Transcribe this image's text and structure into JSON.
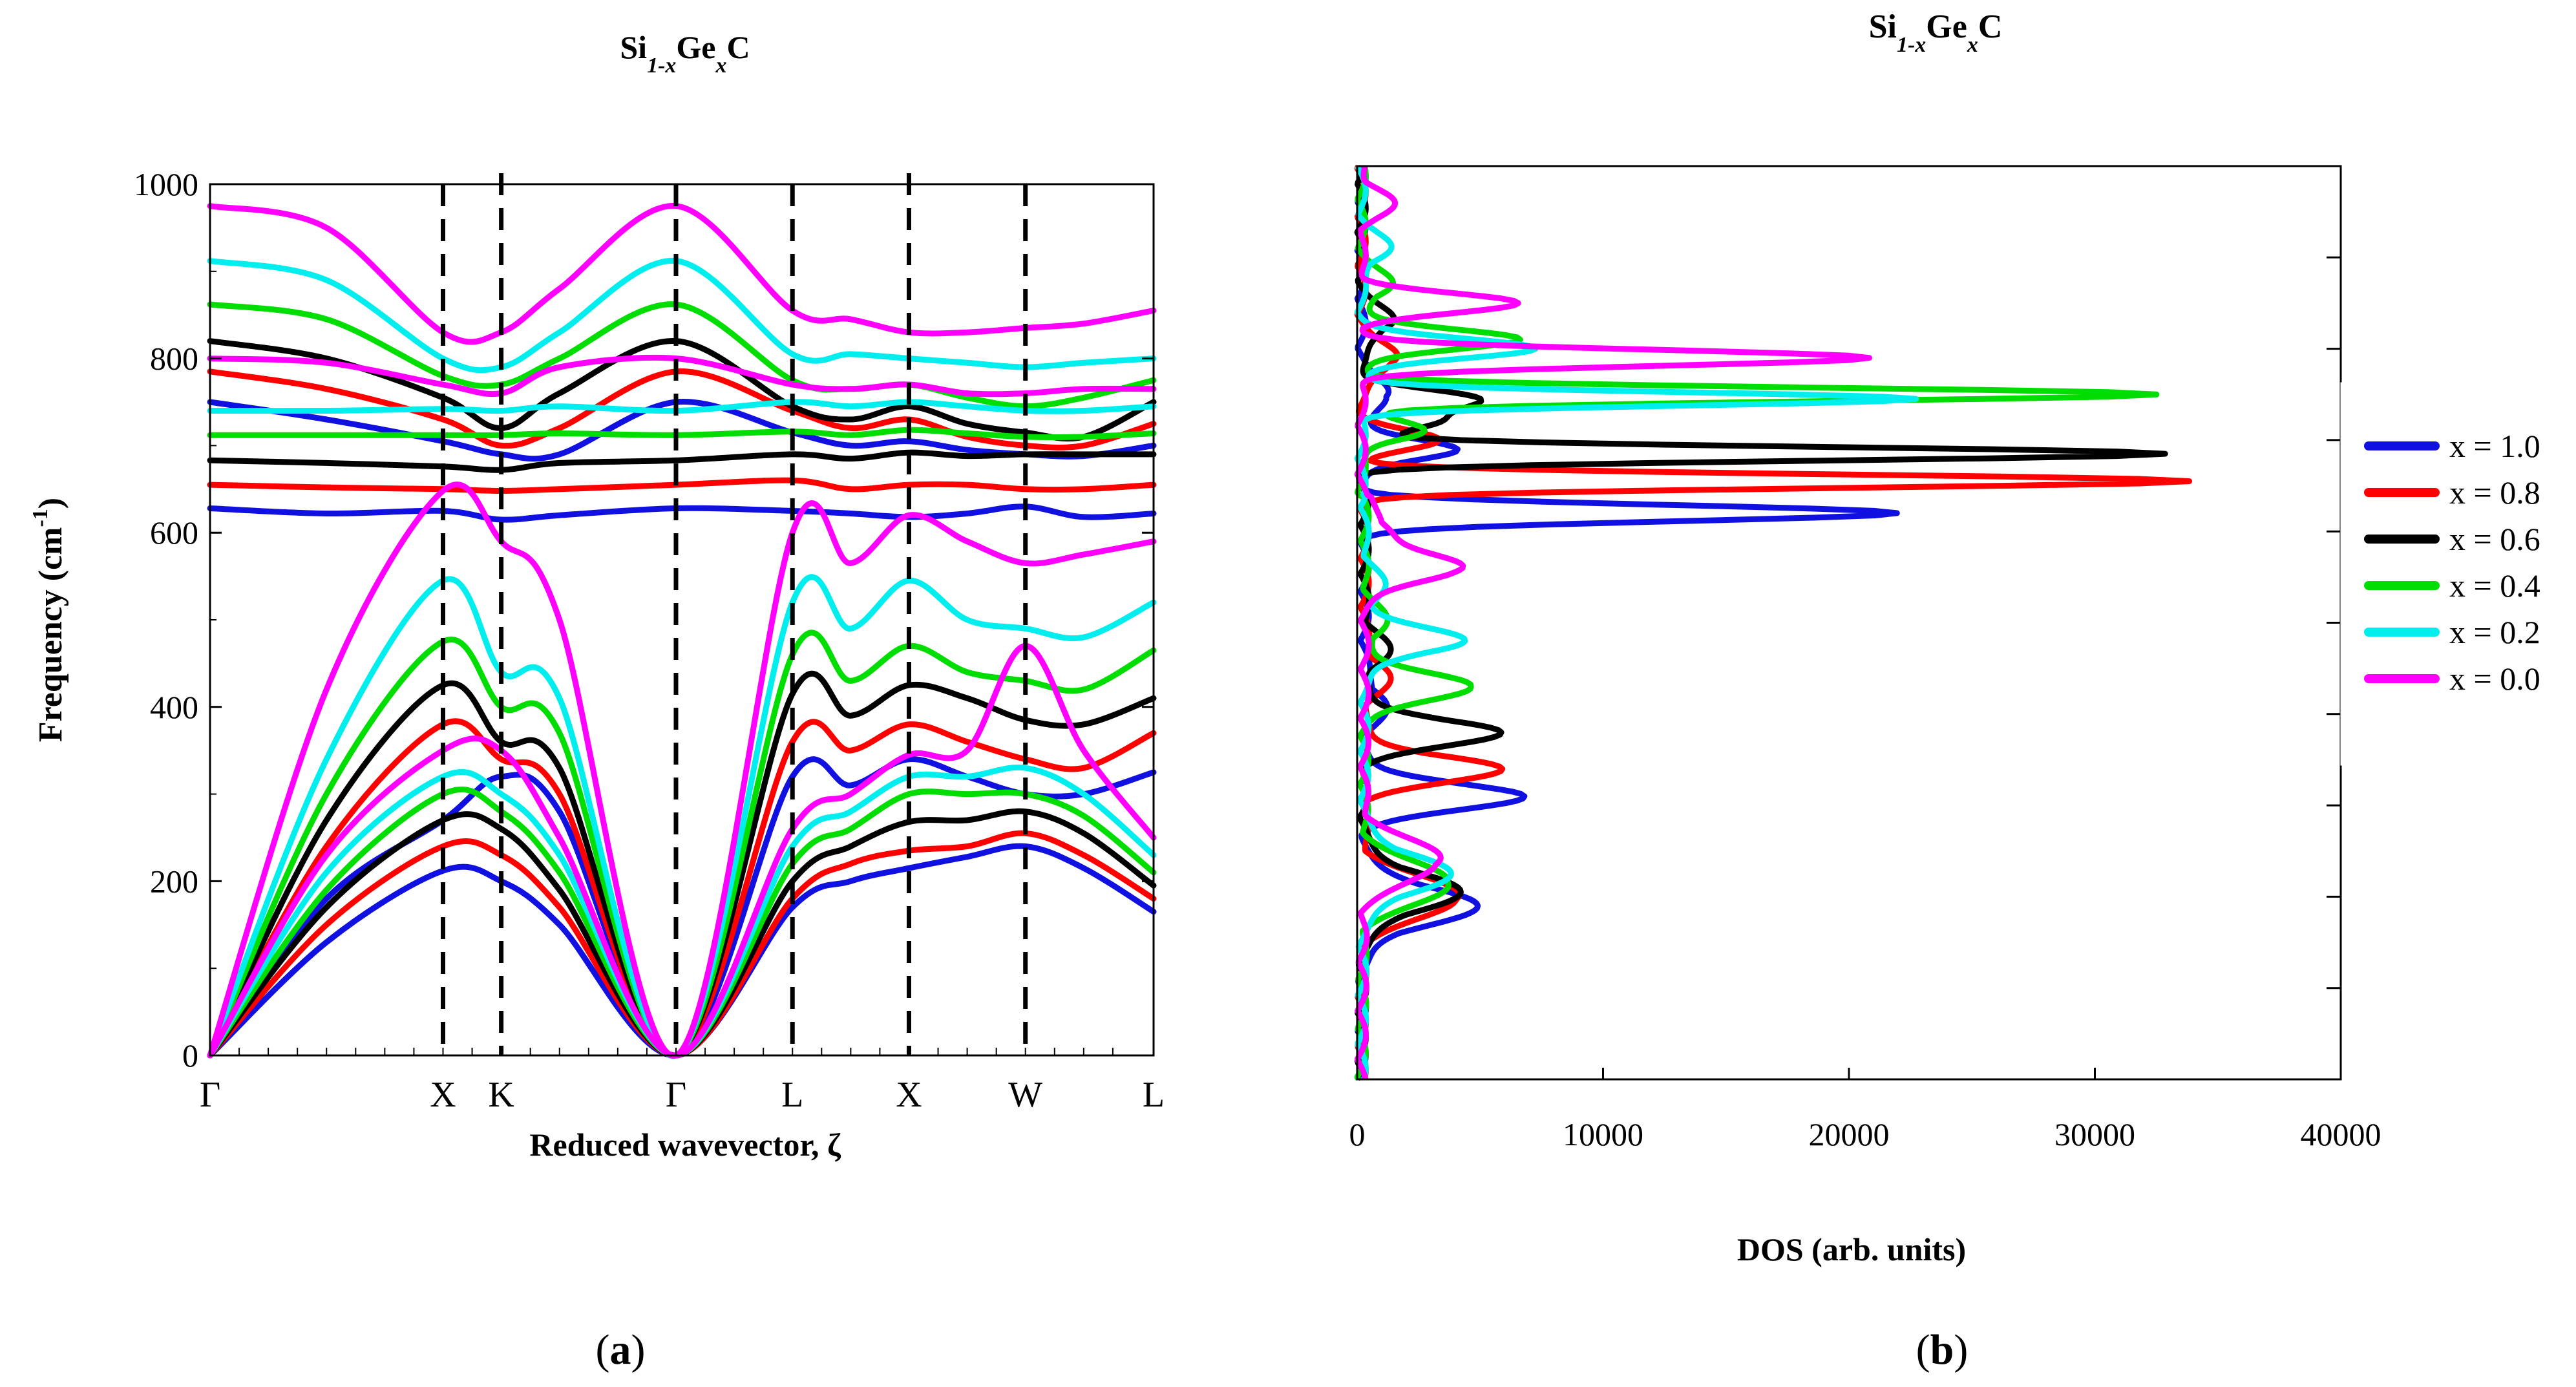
{
  "chart_data": [
    {
      "panel": "a",
      "panel_label": "(a)",
      "type": "line",
      "title": "Si1-xGexC",
      "title_parts": {
        "base1": "Si",
        "sub1": "1-x",
        "base2": "Ge",
        "sub2": "x",
        "base3": "C"
      },
      "xlabel": "Reduced wavevector, ζ",
      "ylabel": "Frequency (cm⁻¹)",
      "ylabel_parts": {
        "main": "Frequency (cm",
        "sup": "-1",
        "tail": ")"
      },
      "xlim": [
        0,
        4.05
      ],
      "ylim": [
        0,
        1000
      ],
      "yticks": [
        0,
        200,
        400,
        600,
        800,
        1000
      ],
      "kpoints": [
        {
          "label": "Γ",
          "x": 0.0
        },
        {
          "label": "X",
          "x": 1.0
        },
        {
          "label": "K",
          "x": 1.25
        },
        {
          "label": "Γ",
          "x": 2.0
        },
        {
          "label": "L",
          "x": 2.5
        },
        {
          "label": "X",
          "x": 3.0
        },
        {
          "label": "W",
          "x": 3.5
        },
        {
          "label": "L",
          "x": 4.05
        }
      ],
      "vertical_dashed_at": [
        1.0,
        1.25,
        2.0,
        2.5,
        3.0,
        3.5
      ],
      "x_nodes": [
        0,
        0.5,
        1.0,
        1.25,
        1.5,
        2.0,
        2.5,
        2.75,
        3.0,
        3.25,
        3.5,
        3.75,
        4.05
      ],
      "series": [
        {
          "name": "x = 1.0",
          "color": "#1010e0",
          "optical": [
            [
              628,
              622,
              625,
              615,
              620,
              628,
              625,
              622,
              618,
              622,
              630,
              618,
              622
            ],
            [
              750,
              730,
              705,
              690,
              690,
              750,
              715,
              700,
              705,
              695,
              690,
              688,
              700
            ]
          ],
          "acoustic": [
            [
              0,
              130,
              212,
              200,
              150,
              0,
              170,
              200,
              215,
              228,
              240,
              215,
              165
            ],
            [
              0,
              180,
              270,
              320,
              280,
              0,
              320,
              310,
              340,
              320,
              300,
              300,
              325
            ]
          ]
        },
        {
          "name": "x = 0.8",
          "color": "#ff0000",
          "optical": [
            [
              655,
              652,
              650,
              648,
              650,
              655,
              660,
              650,
              655,
              655,
              650,
              650,
              655
            ],
            [
              785,
              765,
              730,
              700,
              720,
              785,
              740,
              720,
              730,
              710,
              700,
              700,
              725
            ]
          ],
          "acoustic": [
            [
              0,
              150,
              240,
              230,
              170,
              0,
              180,
              220,
              235,
              240,
              255,
              230,
              180
            ],
            [
              0,
              240,
              380,
              340,
              300,
              0,
              360,
              350,
              380,
              360,
              340,
              330,
              370
            ]
          ]
        },
        {
          "name": "x = 0.6",
          "color": "#000000",
          "optical": [
            [
              683,
              680,
              676,
              672,
              680,
              683,
              690,
              685,
              692,
              688,
              690,
              690,
              690
            ],
            [
              820,
              800,
              755,
              720,
              760,
              820,
              745,
              730,
              745,
              725,
              715,
              710,
              750
            ]
          ],
          "acoustic": [
            [
              0,
              170,
              270,
              260,
              190,
              0,
              200,
              240,
              268,
              270,
              280,
              255,
              195
            ],
            [
              0,
              270,
              425,
              360,
              330,
              0,
              415,
              390,
              425,
              410,
              385,
              380,
              410
            ]
          ]
        },
        {
          "name": "x = 0.4",
          "color": "#00dd00",
          "optical": [
            [
              712,
              712,
              712,
              712,
              714,
              712,
              716,
              712,
              718,
              714,
              710,
              710,
              714
            ],
            [
              862,
              845,
              780,
              770,
              800,
              862,
              775,
              765,
              770,
              755,
              745,
              755,
              775
            ]
          ],
          "acoustic": [
            [
              0,
              190,
              300,
              280,
              210,
              0,
              220,
              260,
              300,
              300,
              300,
              275,
              210
            ],
            [
              0,
              300,
              475,
              400,
              370,
              0,
              460,
              430,
              470,
              440,
              430,
              420,
              465
            ]
          ]
        },
        {
          "name": "x = 0.2",
          "color": "#00eeee",
          "optical": [
            [
              740,
              740,
              742,
              740,
              745,
              740,
              750,
              745,
              750,
              745,
              740,
              740,
              745
            ],
            [
              912,
              890,
              800,
              790,
              830,
              912,
              805,
              805,
              800,
              795,
              790,
              795,
              800
            ]
          ],
          "acoustic": [
            [
              0,
              210,
              320,
              300,
              230,
              0,
              240,
              280,
              320,
              320,
              330,
              300,
              230
            ],
            [
              0,
              340,
              545,
              440,
              410,
              0,
              520,
              490,
              545,
              500,
              490,
              480,
              520
            ]
          ]
        },
        {
          "name": "x = 0.0",
          "color": "#ff00ff",
          "optical": [
            [
              800,
              795,
              770,
              760,
              790,
              800,
              770,
              765,
              770,
              760,
              760,
              765,
              765
            ],
            [
              975,
              950,
              830,
              830,
              880,
              975,
              855,
              845,
              830,
              830,
              835,
              840,
              855
            ]
          ],
          "acoustic": [
            [
              0,
              230,
              350,
              350,
              250,
              0,
              260,
              300,
              345,
              350,
              470,
              350,
              250
            ],
            [
              0,
              420,
              648,
              590,
              500,
              0,
              600,
              565,
              620,
              590,
              565,
              575,
              590
            ]
          ]
        }
      ]
    },
    {
      "panel": "b",
      "panel_label": "(b)",
      "type": "line",
      "title": "Si1-xGexC",
      "title_parts": {
        "base1": "Si",
        "sub1": "1-x",
        "base2": "Ge",
        "sub2": "x",
        "base3": "C"
      },
      "xlabel": "DOS (arb. units)",
      "xlim": [
        0,
        40000
      ],
      "ylim": [
        0,
        1000
      ],
      "xticks": [
        0,
        10000,
        20000,
        30000,
        40000
      ],
      "xtick_labels": [
        "0",
        "10000",
        "20000",
        "30000",
        "40000"
      ],
      "ytick_marks": [
        0,
        100,
        200,
        300,
        400,
        500,
        600,
        700,
        800,
        900,
        1000
      ],
      "legend_position": "right",
      "series": [
        {
          "name": "x = 1.0",
          "color": "#1010e0",
          "peaks": [
            [
              190,
              4500,
              30
            ],
            [
              310,
              6500,
              20
            ],
            [
              410,
              800,
              25
            ],
            [
              620,
              21500,
              12
            ],
            [
              690,
              4000,
              15
            ],
            [
              750,
              1200,
              20
            ]
          ]
        },
        {
          "name": "x = 0.8",
          "color": "#ff0000",
          "peaks": [
            [
              200,
              4000,
              30
            ],
            [
              340,
              5500,
              20
            ],
            [
              440,
              900,
              25
            ],
            [
              655,
              33500,
              10
            ],
            [
              700,
              3000,
              15
            ],
            [
              790,
              1500,
              20
            ]
          ]
        },
        {
          "name": "x = 0.6",
          "color": "#000000",
          "peaks": [
            [
              205,
              3800,
              30
            ],
            [
              380,
              5500,
              20
            ],
            [
              470,
              900,
              25
            ],
            [
              685,
              32500,
              10
            ],
            [
              720,
              3000,
              15
            ],
            [
              745,
              4500,
              15
            ],
            [
              830,
              1300,
              20
            ]
          ]
        },
        {
          "name": "x = 0.4",
          "color": "#00dd00",
          "peaks": [
            [
              215,
              3600,
              30
            ],
            [
              430,
              4500,
              20
            ],
            [
              500,
              800,
              25
            ],
            [
              710,
              2500,
              15
            ],
            [
              750,
              32500,
              10
            ],
            [
              810,
              6500,
              15
            ],
            [
              870,
              1200,
              20
            ]
          ]
        },
        {
          "name": "x = 0.2",
          "color": "#00eeee",
          "peaks": [
            [
              225,
              3400,
              30
            ],
            [
              480,
              4000,
              20
            ],
            [
              540,
              700,
              25
            ],
            [
              745,
              22500,
              10
            ],
            [
              800,
              7000,
              15
            ],
            [
              910,
              1100,
              20
            ]
          ]
        },
        {
          "name": "x = 0.0",
          "color": "#ff00ff",
          "peaks": [
            [
              240,
              3200,
              30
            ],
            [
              560,
              4000,
              20
            ],
            [
              600,
              1000,
              25
            ],
            [
              790,
              20500,
              12
            ],
            [
              850,
              6200,
              15
            ],
            [
              960,
              1200,
              20
            ]
          ]
        }
      ]
    }
  ]
}
